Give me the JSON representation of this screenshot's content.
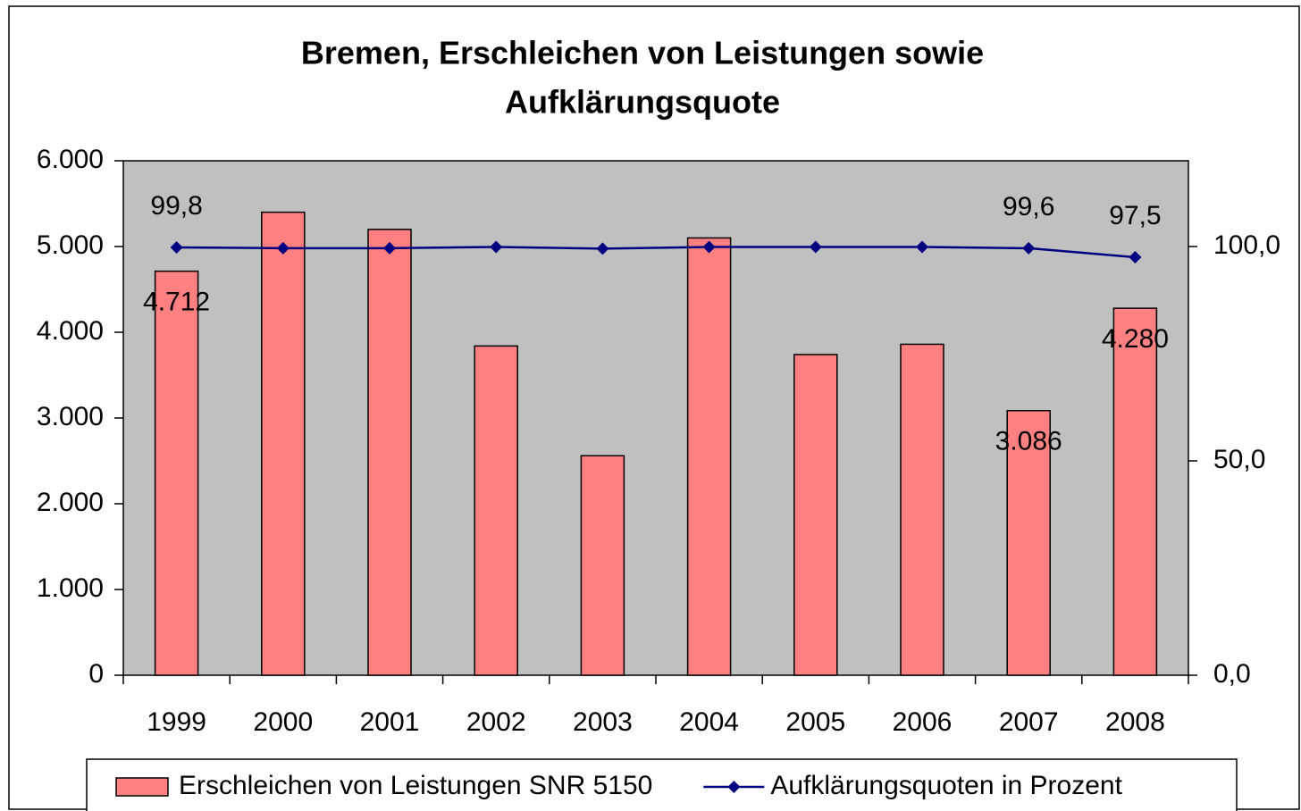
{
  "chart_data": {
    "type": "bar_line",
    "title": [
      "Bremen, Erschleichen von Leistungen sowie",
      "Aufklärungsquote"
    ],
    "categories": [
      "1999",
      "2000",
      "2001",
      "2002",
      "2003",
      "2004",
      "2005",
      "2006",
      "2007",
      "2008"
    ],
    "series": [
      {
        "name": "Erschleichen von Leistungen SNR 5150",
        "type": "bar",
        "color": "#ff8080",
        "values": [
          4712,
          5400,
          5200,
          3840,
          2560,
          5100,
          3740,
          3860,
          3086,
          4280
        ],
        "value_labels": [
          "4.712",
          null,
          null,
          null,
          null,
          null,
          null,
          null,
          "3.086",
          "4.280"
        ]
      },
      {
        "name": "Aufklärungsquoten in Prozent",
        "type": "line",
        "axis": "y2",
        "color": "#000080",
        "values": [
          99.8,
          99.6,
          99.6,
          99.9,
          99.5,
          99.9,
          99.9,
          99.9,
          99.6,
          97.5
        ],
        "value_labels": [
          "99,8",
          null,
          null,
          null,
          null,
          null,
          null,
          null,
          "99,6",
          "97,5"
        ]
      }
    ],
    "ylim": [
      0,
      6000
    ],
    "yticks": [
      0,
      {
        "value": 1000,
        "label": "1.000"
      },
      {
        "value": 2000,
        "label": "2.000"
      },
      {
        "value": 3000,
        "label": "3.000"
      },
      {
        "value": 4000,
        "label": "4.000"
      },
      {
        "value": 5000,
        "label": "5.000"
      },
      {
        "value": 6000,
        "label": "6.000"
      }
    ],
    "y2lim": [
      0,
      120
    ],
    "y2ticks": [
      {
        "value": 0,
        "label": "0,0"
      },
      {
        "value": 50,
        "label": "50,0"
      },
      {
        "value": 100,
        "label": "100,0"
      }
    ],
    "plot_background": "#c0c0c0",
    "legend": "bottom"
  }
}
